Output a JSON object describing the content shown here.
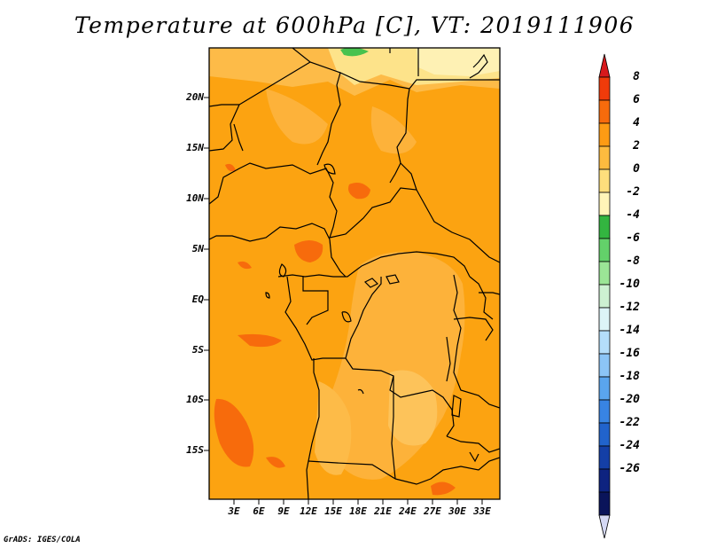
{
  "title": "Temperature at 600hPa [C], VT: 2019111906",
  "credit": "GrADS: IGES/COLA",
  "y_axis_labels": [
    "20N",
    "15N",
    "10N",
    "5N",
    "EQ",
    "5S",
    "10S",
    "15S"
  ],
  "x_axis_labels": [
    "3E",
    "6E",
    "9E",
    "12E",
    "15E",
    "18E",
    "21E",
    "24E",
    "27E",
    "30E",
    "33E"
  ],
  "colorbar": {
    "labels": [
      "8",
      "6",
      "4",
      "2",
      "0",
      "-2",
      "-4",
      "-6",
      "-8",
      "-10",
      "-12",
      "-14",
      "-16",
      "-18",
      "-20",
      "-22",
      "-24",
      "-26"
    ],
    "colors": [
      "#d7191c",
      "#f03b0a",
      "#f76b0c",
      "#fd9b14",
      "#fdbb3f",
      "#fede7c",
      "#fff5b8",
      "#33b540",
      "#63d16a",
      "#9be596",
      "#cdf1d2",
      "#dcf4f7",
      "#b4defa",
      "#8cc5f6",
      "#5aa5ee",
      "#3884e3",
      "#2163cc",
      "#143fa6",
      "#0e2380",
      "#0a145a",
      "#d4d8f4"
    ]
  },
  "field_colors": {
    "base": "#fca311",
    "cool_north": "#fde38a",
    "cooler": "#fdbb48",
    "warm": "#f76b0c",
    "green_patch": "#48c24e"
  }
}
